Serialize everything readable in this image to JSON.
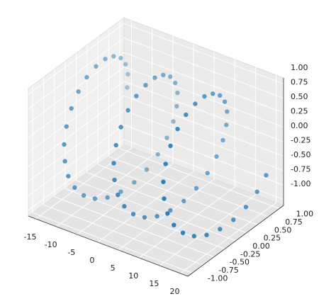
{
  "chart_data": {
    "type": "scatter3d",
    "color": "#1f77b4",
    "x": [
      -15,
      -14.5,
      -14,
      -13.5,
      -13,
      -12.5,
      -12,
      -11.5,
      -11,
      -10.5,
      -10,
      -9.5,
      -9,
      -8.5,
      -8,
      -7.5,
      -7,
      -6.5,
      -6,
      -5.5,
      -5,
      -4.5,
      -4,
      -3.5,
      -3,
      -2.5,
      -2,
      -1.5,
      -1,
      -0.5,
      0,
      0.5,
      1,
      1.5,
      2,
      2.5,
      3,
      3.5,
      4,
      4.5,
      5,
      5.5,
      6,
      6.5,
      7,
      7.5,
      8,
      8.5,
      9,
      9.5,
      10,
      10.5,
      11,
      11.5,
      12,
      12.5,
      13,
      13.5,
      14,
      14.5,
      15,
      15.5,
      16,
      16.5,
      17,
      17.5,
      18,
      18.5,
      19,
      19.5,
      20
    ],
    "y": [
      1,
      0.97,
      0.87,
      0.71,
      0.5,
      0.26,
      0,
      -0.26,
      -0.5,
      -0.71,
      -0.87,
      -0.97,
      -1,
      -0.97,
      -0.87,
      -0.71,
      -0.5,
      -0.26,
      0,
      0.26,
      0.5,
      0.71,
      0.87,
      0.97,
      1,
      0.97,
      0.87,
      0.71,
      0.5,
      0.26,
      0,
      -0.26,
      -0.5,
      -0.71,
      -0.87,
      -0.97,
      -1,
      -0.97,
      -0.87,
      -0.71,
      -0.5,
      -0.26,
      0,
      0.26,
      0.5,
      0.71,
      0.87,
      0.97,
      1,
      0.97,
      0.87,
      0.71,
      0.5,
      0.26,
      0,
      -0.26,
      -0.5,
      -0.71,
      -0.87,
      -0.97,
      -1,
      -0.97,
      -0.87,
      -0.71,
      -0.5,
      -0.26,
      0,
      0.26,
      0.5,
      0.71,
      0.87
    ],
    "z": [
      0,
      0.26,
      0.5,
      0.71,
      0.87,
      0.97,
      1,
      0.97,
      0.87,
      0.71,
      0.5,
      0.26,
      0,
      -0.26,
      -0.5,
      -0.71,
      -0.87,
      -0.97,
      -1,
      -0.97,
      -0.87,
      -0.71,
      -0.5,
      -0.26,
      0,
      0.26,
      0.5,
      0.71,
      0.87,
      0.97,
      1,
      0.97,
      0.87,
      0.71,
      0.5,
      0.26,
      0,
      -0.26,
      -0.5,
      -0.71,
      -0.87,
      -0.97,
      -1,
      -0.97,
      -0.87,
      -0.71,
      -0.5,
      -0.26,
      0,
      0.26,
      0.5,
      0.71,
      0.87,
      0.97,
      1,
      0.97,
      0.87,
      0.71,
      0.5,
      0.26,
      0,
      -0.26,
      -0.5,
      -0.71,
      -0.87,
      -0.97,
      -1,
      -0.97,
      -0.87,
      -0.71,
      -0.5
    ],
    "xlim": [
      -16.8,
      21.8
    ],
    "ylim": [
      -1.1,
      1.1
    ],
    "zlim": [
      -1.1,
      1.1
    ],
    "xticks": [
      -15,
      -10,
      -5,
      0,
      5,
      10,
      15,
      20
    ],
    "yticks": [
      {
        "value": -1,
        "label": "-1.00"
      },
      {
        "value": -0.75,
        "label": "-0.75"
      },
      {
        "value": -0.5,
        "label": "-0.50"
      },
      {
        "value": -0.25,
        "label": "-0.25"
      },
      {
        "value": 0,
        "label": "0.00"
      },
      {
        "value": 0.25,
        "label": "0.25"
      },
      {
        "value": 0.5,
        "label": "0.50"
      },
      {
        "value": 0.75,
        "label": "0.75"
      },
      {
        "value": 1,
        "label": "1.00"
      }
    ],
    "zticks": [
      {
        "value": -1,
        "label": "-1.00"
      },
      {
        "value": -0.75,
        "label": "-0.75"
      },
      {
        "value": -0.5,
        "label": "-0.50"
      },
      {
        "value": -0.25,
        "label": "-0.25"
      },
      {
        "value": 0,
        "label": "0.00"
      },
      {
        "value": 0.25,
        "label": "0.25"
      },
      {
        "value": 0.5,
        "label": "0.50"
      },
      {
        "value": 0.75,
        "label": "0.75"
      },
      {
        "value": 1,
        "label": "1.00"
      }
    ],
    "grid": true
  }
}
